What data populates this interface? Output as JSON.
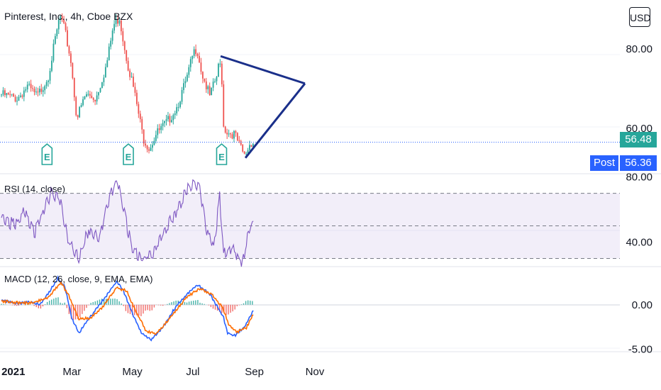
{
  "header": {
    "symbol_title": "Pinterest, Inc., 4h, Cboe BZX",
    "currency": "USD"
  },
  "panes": {
    "rsi_label": "RSI (14, close)",
    "macd_label": "MACD (12, 26, close, 9, EMA, EMA)"
  },
  "badges": {
    "last_price": "56.48",
    "post_label": "Post",
    "post_price": "56.36"
  },
  "events": {
    "earnings_marker": "E"
  },
  "colors": {
    "up": "#26a69a",
    "down": "#ef5350",
    "trendline": "#1a2f8a",
    "rsi_line": "#7e57c2",
    "macd_line": "#2962ff",
    "signal_line": "#ff6d00",
    "post_badge": "#2962ff",
    "price_badge": "#26a69a"
  },
  "chart_data": [
    {
      "type": "candlestick",
      "title": "Pinterest, Inc., 4h, Cboe BZX",
      "x_start": "2020-12-20",
      "x_tick_labels": [
        "2021",
        "Mar",
        "May",
        "Jul",
        "Sep",
        "Nov"
      ],
      "x_tick_dates": [
        "2021-01-01",
        "2021-03-01",
        "2021-05-01",
        "2021-07-01",
        "2021-09-01",
        "2021-11-01"
      ],
      "y_ticks": [
        80,
        60
      ],
      "ylim": [
        48.5,
        92.4
      ],
      "price_path": [
        [
          "2020-12-20",
          68.5
        ],
        [
          "2021-01-05",
          67.5
        ],
        [
          "2021-01-15",
          70.5
        ],
        [
          "2021-01-25",
          68.0
        ],
        [
          "2021-02-05",
          73.0
        ],
        [
          "2021-02-12",
          82.0
        ],
        [
          "2021-02-17",
          88.5
        ],
        [
          "2021-02-22",
          84.5
        ],
        [
          "2021-02-28",
          77.0
        ],
        [
          "2021-03-06",
          62.5
        ],
        [
          "2021-03-15",
          68.5
        ],
        [
          "2021-03-25",
          67.5
        ],
        [
          "2021-04-05",
          76.0
        ],
        [
          "2021-04-12",
          86.0
        ],
        [
          "2021-04-18",
          88.0
        ],
        [
          "2021-04-22",
          82.0
        ],
        [
          "2021-04-27",
          75.5
        ],
        [
          "2021-05-01",
          71.5
        ],
        [
          "2021-05-05",
          66.5
        ],
        [
          "2021-05-12",
          57.5
        ],
        [
          "2021-05-18",
          55.0
        ],
        [
          "2021-05-25",
          58.5
        ],
        [
          "2021-06-05",
          61.5
        ],
        [
          "2021-06-15",
          65.5
        ],
        [
          "2021-06-25",
          72.5
        ],
        [
          "2021-07-01",
          78.5
        ],
        [
          "2021-07-05",
          80.5
        ],
        [
          "2021-07-10",
          74.0
        ],
        [
          "2021-07-18",
          68.0
        ],
        [
          "2021-07-25",
          73.0
        ],
        [
          "2021-07-28",
          77.0
        ],
        [
          "2021-07-31",
          70.5
        ],
        [
          "2021-08-01",
          60.5
        ],
        [
          "2021-08-05",
          59.0
        ],
        [
          "2021-08-12",
          58.5
        ],
        [
          "2021-08-18",
          55.0
        ],
        [
          "2021-08-22",
          53.0
        ],
        [
          "2021-08-26",
          55.0
        ],
        [
          "2021-08-28",
          56.5
        ],
        [
          "2021-08-31",
          56.48
        ]
      ],
      "last_price": 56.48,
      "post_market_price": 56.36,
      "earnings_dates": [
        "2021-02-04",
        "2021-04-27",
        "2021-07-30"
      ],
      "trendlines": [
        {
          "from": [
            "2021-07-29",
            78.2
          ],
          "to": [
            "2021-10-22",
            71.3
          ]
        },
        {
          "from": [
            "2021-08-23",
            52.5
          ],
          "to": [
            "2021-10-22",
            71.3
          ]
        }
      ]
    },
    {
      "type": "line",
      "title": "RSI (14, close)",
      "ylim": [
        25,
        82
      ],
      "y_ticks": [
        80,
        40
      ],
      "band_levels": [
        70,
        50,
        30
      ],
      "path": [
        [
          "2020-12-20",
          55
        ],
        [
          "2021-01-03",
          50
        ],
        [
          "2021-01-12",
          60
        ],
        [
          "2021-01-22",
          45
        ],
        [
          "2021-02-01",
          60
        ],
        [
          "2021-02-08",
          70
        ],
        [
          "2021-02-16",
          68
        ],
        [
          "2021-02-26",
          40
        ],
        [
          "2021-03-08",
          30
        ],
        [
          "2021-03-18",
          48
        ],
        [
          "2021-03-28",
          42
        ],
        [
          "2021-04-10",
          70
        ],
        [
          "2021-04-16",
          78
        ],
        [
          "2021-04-22",
          60
        ],
        [
          "2021-05-01",
          35
        ],
        [
          "2021-05-10",
          30
        ],
        [
          "2021-05-20",
          32
        ],
        [
          "2021-06-01",
          45
        ],
        [
          "2021-06-15",
          60
        ],
        [
          "2021-06-25",
          72
        ],
        [
          "2021-07-02",
          76
        ],
        [
          "2021-07-08",
          72
        ],
        [
          "2021-07-14",
          50
        ],
        [
          "2021-07-22",
          35
        ],
        [
          "2021-07-28",
          68
        ],
        [
          "2021-08-01",
          33
        ],
        [
          "2021-08-10",
          36
        ],
        [
          "2021-08-20",
          28
        ],
        [
          "2021-08-26",
          45
        ],
        [
          "2021-08-29",
          54
        ],
        [
          "2021-08-31",
          49
        ]
      ]
    },
    {
      "type": "line",
      "title": "MACD (12, 26, close, 9, EMA, EMA)",
      "ylim": [
        -5.3,
        4.3
      ],
      "y_ticks": [
        0.0,
        -5.0
      ],
      "y_tick_labels": [
        "0.00",
        "-5.00"
      ],
      "series": [
        {
          "name": "MACD",
          "path": [
            [
              "2020-12-20",
              0.5
            ],
            [
              "2021-01-05",
              0.1
            ],
            [
              "2021-01-15",
              0.3
            ],
            [
              "2021-01-28",
              0.0
            ],
            [
              "2021-02-05",
              1.2
            ],
            [
              "2021-02-15",
              3.0
            ],
            [
              "2021-02-22",
              2.0
            ],
            [
              "2021-03-01",
              -1.5
            ],
            [
              "2021-03-08",
              -3.2
            ],
            [
              "2021-03-15",
              -2.0
            ],
            [
              "2021-03-25",
              -0.6
            ],
            [
              "2021-04-05",
              1.0
            ],
            [
              "2021-04-15",
              2.6
            ],
            [
              "2021-04-22",
              1.6
            ],
            [
              "2021-05-01",
              -1.0
            ],
            [
              "2021-05-10",
              -3.2
            ],
            [
              "2021-05-20",
              -3.9
            ],
            [
              "2021-06-01",
              -2.5
            ],
            [
              "2021-06-15",
              0.0
            ],
            [
              "2021-06-28",
              1.5
            ],
            [
              "2021-07-06",
              2.2
            ],
            [
              "2021-07-18",
              1.2
            ],
            [
              "2021-07-26",
              -0.3
            ],
            [
              "2021-08-01",
              -1.5
            ],
            [
              "2021-08-05",
              -3.2
            ],
            [
              "2021-08-12",
              -3.5
            ],
            [
              "2021-08-22",
              -2.5
            ],
            [
              "2021-08-31",
              -0.6
            ]
          ]
        },
        {
          "name": "Signal",
          "path": [
            [
              "2020-12-20",
              0.4
            ],
            [
              "2021-01-08",
              0.2
            ],
            [
              "2021-01-20",
              0.2
            ],
            [
              "2021-02-05",
              0.8
            ],
            [
              "2021-02-18",
              2.5
            ],
            [
              "2021-02-26",
              1.0
            ],
            [
              "2021-03-08",
              -1.6
            ],
            [
              "2021-03-20",
              -1.5
            ],
            [
              "2021-04-01",
              -0.3
            ],
            [
              "2021-04-15",
              1.9
            ],
            [
              "2021-04-25",
              1.6
            ],
            [
              "2021-05-05",
              -0.8
            ],
            [
              "2021-05-15",
              -3.0
            ],
            [
              "2021-05-25",
              -3.3
            ],
            [
              "2021-06-10",
              -1.2
            ],
            [
              "2021-06-25",
              0.9
            ],
            [
              "2021-07-08",
              1.8
            ],
            [
              "2021-07-20",
              1.2
            ],
            [
              "2021-07-31",
              -0.3
            ],
            [
              "2021-08-06",
              -2.2
            ],
            [
              "2021-08-14",
              -3.1
            ],
            [
              "2021-08-24",
              -2.6
            ],
            [
              "2021-08-31",
              -1.0
            ]
          ]
        }
      ]
    }
  ]
}
